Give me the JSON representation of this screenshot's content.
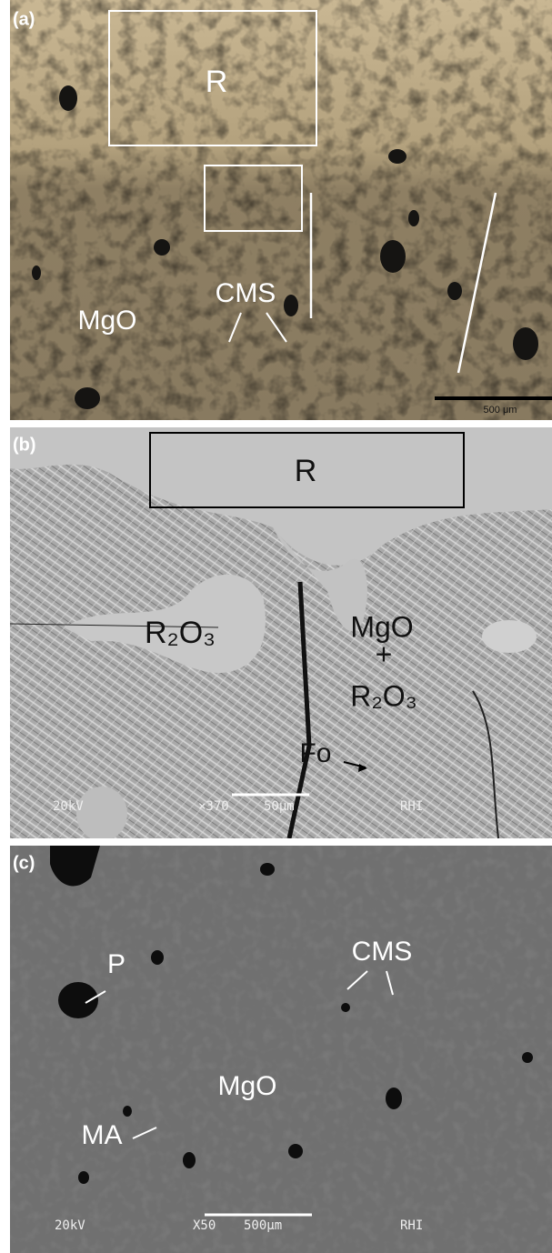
{
  "panels": [
    {
      "label": "(a)",
      "annotations": [
        "R",
        "CMS",
        "MgO"
      ],
      "scale_bar": "500 μm"
    },
    {
      "label": "(b)",
      "annotations": [
        "R",
        "R₂O₃",
        "MgO",
        "+",
        "R₂O₃",
        "Fo"
      ],
      "info_bar": [
        "20kV",
        "×370",
        "50µm",
        "RHI"
      ]
    },
    {
      "label": "(c)",
      "annotations": [
        "P",
        "CMS",
        "MgO",
        "MA"
      ],
      "info_bar": [
        "20kV",
        "X50",
        "500µm",
        "RHI"
      ]
    }
  ]
}
